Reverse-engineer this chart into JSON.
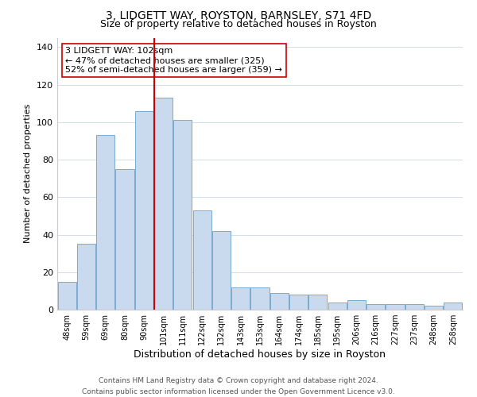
{
  "title": "3, LIDGETT WAY, ROYSTON, BARNSLEY, S71 4FD",
  "subtitle": "Size of property relative to detached houses in Royston",
  "xlabel": "Distribution of detached houses by size in Royston",
  "ylabel": "Number of detached properties",
  "bar_labels": [
    "48sqm",
    "59sqm",
    "69sqm",
    "80sqm",
    "90sqm",
    "101sqm",
    "111sqm",
    "122sqm",
    "132sqm",
    "143sqm",
    "153sqm",
    "164sqm",
    "174sqm",
    "185sqm",
    "195sqm",
    "206sqm",
    "216sqm",
    "227sqm",
    "237sqm",
    "248sqm",
    "258sqm"
  ],
  "bar_values": [
    15,
    35,
    93,
    75,
    106,
    113,
    101,
    53,
    42,
    12,
    12,
    9,
    8,
    8,
    4,
    5,
    3,
    3,
    3,
    2,
    4
  ],
  "bar_color": "#c9d9ee",
  "bar_edge_color": "#7aaad0",
  "vline_x_index": 5,
  "vline_color": "#cc0000",
  "annotation_line1": "3 LIDGETT WAY: 102sqm",
  "annotation_line2": "← 47% of detached houses are smaller (325)",
  "annotation_line3": "52% of semi-detached houses are larger (359) →",
  "ylim": [
    0,
    145
  ],
  "yticks": [
    0,
    20,
    40,
    60,
    80,
    100,
    120,
    140
  ],
  "footer": "Contains HM Land Registry data © Crown copyright and database right 2024.\nContains public sector information licensed under the Open Government Licence v3.0.",
  "bg_color": "#ffffff",
  "grid_color": "#d0dce8"
}
